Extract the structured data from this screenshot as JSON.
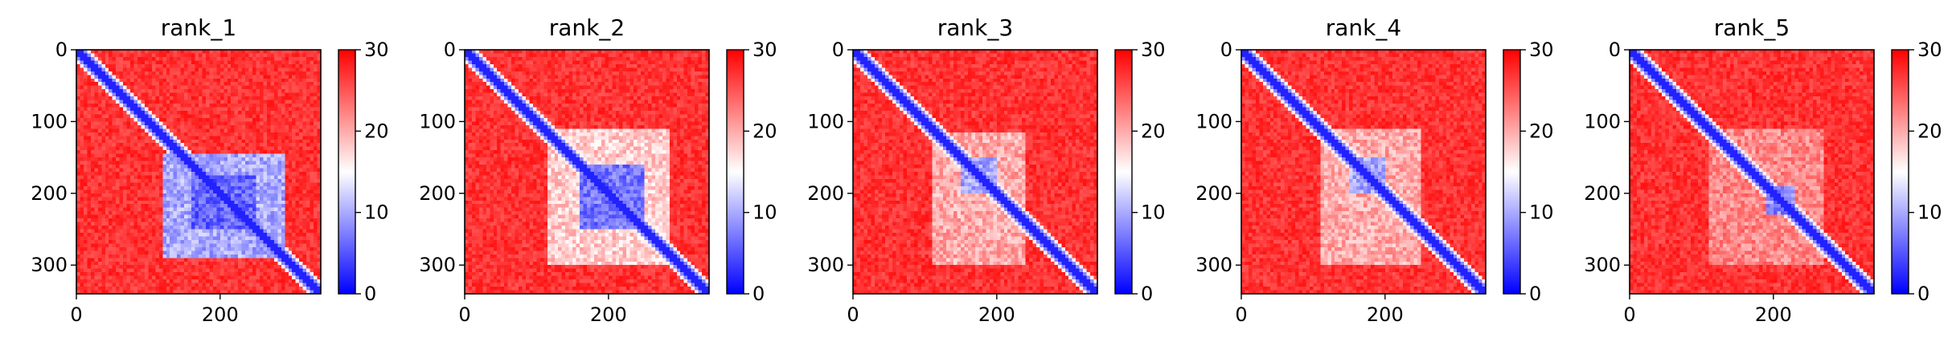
{
  "figure": {
    "panel_titles": [
      "rank_1",
      "rank_2",
      "rank_3",
      "rank_4",
      "rank_5"
    ]
  },
  "chart_data": [
    {
      "type": "heatmap",
      "title": "rank_1",
      "xlim": [
        0,
        340
      ],
      "ylim": [
        340,
        0
      ],
      "xticks": [
        0,
        200
      ],
      "yticks": [
        0,
        100,
        200,
        300
      ],
      "colorbar": {
        "range": [
          0,
          30
        ],
        "ticks": [
          0,
          10,
          20,
          30
        ],
        "colormap": "bwr"
      },
      "diagonal_value": 2,
      "background_value": 30,
      "blocks": [
        {
          "x": [
            120,
            290
          ],
          "y": [
            145,
            290
          ],
          "value": 10
        },
        {
          "x": [
            160,
            250
          ],
          "y": [
            175,
            250
          ],
          "value": 6
        }
      ]
    },
    {
      "type": "heatmap",
      "title": "rank_2",
      "xlim": [
        0,
        340
      ],
      "ylim": [
        340,
        0
      ],
      "xticks": [
        0,
        200
      ],
      "yticks": [
        0,
        100,
        200,
        300
      ],
      "colorbar": {
        "range": [
          0,
          30
        ],
        "ticks": [
          0,
          10,
          20,
          30
        ],
        "colormap": "bwr"
      },
      "diagonal_value": 2,
      "background_value": 30,
      "blocks": [
        {
          "x": [
            115,
            285
          ],
          "y": [
            110,
            300
          ],
          "value": 18
        },
        {
          "x": [
            160,
            250
          ],
          "y": [
            160,
            250
          ],
          "value": 7
        }
      ]
    },
    {
      "type": "heatmap",
      "title": "rank_3",
      "xlim": [
        0,
        340
      ],
      "ylim": [
        340,
        0
      ],
      "xticks": [
        0,
        200
      ],
      "yticks": [
        0,
        100,
        200,
        300
      ],
      "colorbar": {
        "range": [
          0,
          30
        ],
        "ticks": [
          0,
          10,
          20,
          30
        ],
        "colormap": "bwr"
      },
      "diagonal_value": 2,
      "background_value": 30,
      "blocks": [
        {
          "x": [
            110,
            240
          ],
          "y": [
            115,
            300
          ],
          "value": 20
        },
        {
          "x": [
            150,
            200
          ],
          "y": [
            150,
            200
          ],
          "value": 10
        }
      ]
    },
    {
      "type": "heatmap",
      "title": "rank_4",
      "xlim": [
        0,
        340
      ],
      "ylim": [
        340,
        0
      ],
      "xticks": [
        0,
        200
      ],
      "yticks": [
        0,
        100,
        200,
        300
      ],
      "colorbar": {
        "range": [
          0,
          30
        ],
        "ticks": [
          0,
          10,
          20,
          30
        ],
        "colormap": "bwr"
      },
      "diagonal_value": 2,
      "background_value": 30,
      "blocks": [
        {
          "x": [
            110,
            250
          ],
          "y": [
            110,
            300
          ],
          "value": 20
        },
        {
          "x": [
            150,
            200
          ],
          "y": [
            150,
            200
          ],
          "value": 10
        }
      ]
    },
    {
      "type": "heatmap",
      "title": "rank_5",
      "xlim": [
        0,
        340
      ],
      "ylim": [
        340,
        0
      ],
      "xticks": [
        0,
        200
      ],
      "yticks": [
        0,
        100,
        200,
        300
      ],
      "colorbar": {
        "range": [
          0,
          30
        ],
        "ticks": [
          0,
          10,
          20,
          30
        ],
        "colormap": "bwr"
      },
      "diagonal_value": 2,
      "background_value": 30,
      "blocks": [
        {
          "x": [
            110,
            270
          ],
          "y": [
            110,
            300
          ],
          "value": 22
        },
        {
          "x": [
            190,
            230
          ],
          "y": [
            190,
            230
          ],
          "value": 8
        }
      ]
    }
  ]
}
